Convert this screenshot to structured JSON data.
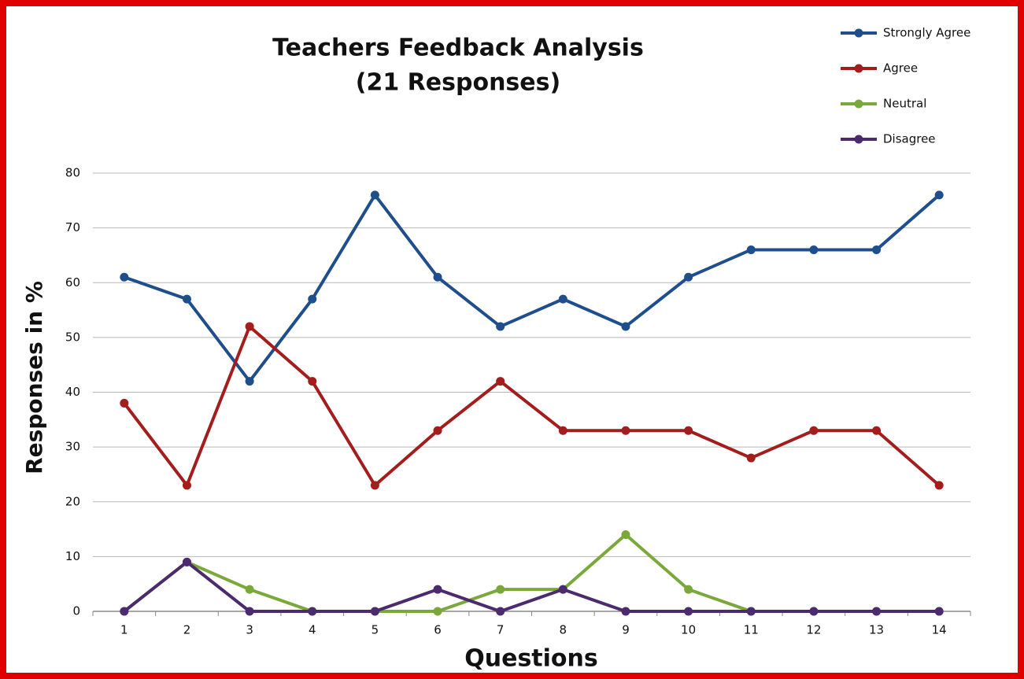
{
  "chart_data": {
    "type": "line",
    "title": "Teachers Feedback Analysis",
    "subtitle": "(21 Responses)",
    "x_label": "Questions",
    "y_label": "Responses in %",
    "categories": [
      "1",
      "2",
      "3",
      "4",
      "5",
      "6",
      "7",
      "8",
      "9",
      "10",
      "11",
      "12",
      "13",
      "14"
    ],
    "series": [
      {
        "name": "Strongly Agree",
        "color": "#1f4e8c",
        "values": [
          61,
          57,
          42,
          57,
          76,
          61,
          52,
          57,
          52,
          61,
          66,
          66,
          66,
          76
        ]
      },
      {
        "name": "Agree",
        "color": "#a31d1d",
        "values": [
          38,
          23,
          52,
          42,
          23,
          33,
          42,
          33,
          33,
          33,
          28,
          33,
          33,
          23
        ]
      },
      {
        "name": "Neutral",
        "color": "#7aa83a",
        "values": [
          0,
          9,
          4,
          0,
          0,
          0,
          4,
          4,
          14,
          4,
          0,
          0,
          0,
          0
        ]
      },
      {
        "name": "Disagree",
        "color": "#4b2a6e",
        "values": [
          0,
          9,
          0,
          0,
          0,
          4,
          0,
          4,
          0,
          0,
          0,
          0,
          0,
          0
        ]
      }
    ],
    "ylim": [
      0,
      80
    ],
    "yticks": [
      0,
      10,
      20,
      30,
      40,
      50,
      60,
      70,
      80
    ],
    "grid": true,
    "legend": "top-right"
  }
}
